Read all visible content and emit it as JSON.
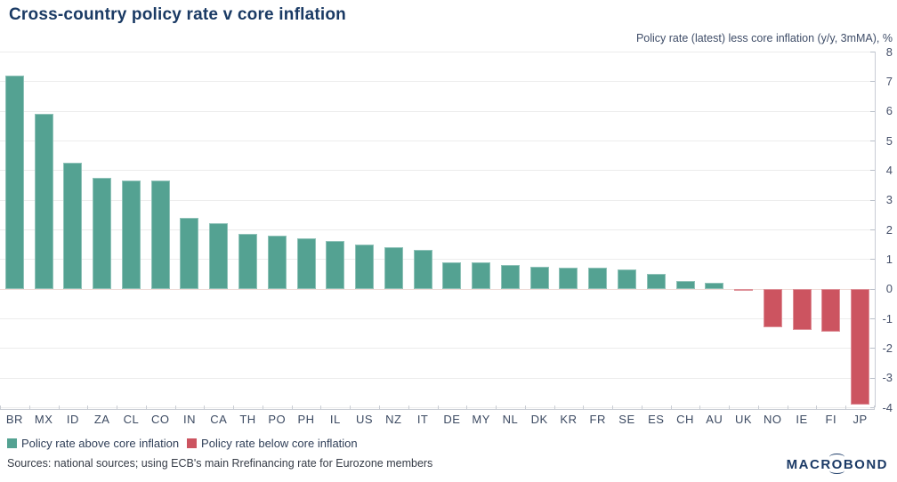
{
  "header": {
    "title": "Cross-country policy rate v core inflation",
    "subtitle": "Policy rate (latest) less core inflation (y/y, 3mMA), %"
  },
  "chart_data": {
    "type": "bar",
    "title": "Cross-country policy rate v core inflation",
    "value_axis_note": "Policy rate (latest) less core inflation (y/y, 3mMA), %",
    "categories": [
      "BR",
      "MX",
      "ID",
      "ZA",
      "CL",
      "CO",
      "IN",
      "CA",
      "TH",
      "PO",
      "PH",
      "IL",
      "US",
      "NZ",
      "IT",
      "DE",
      "MY",
      "NL",
      "DK",
      "KR",
      "FR",
      "SE",
      "ES",
      "CH",
      "AU",
      "UK",
      "NO",
      "IE",
      "FI",
      "JP"
    ],
    "values": [
      7.2,
      5.9,
      4.25,
      3.75,
      3.65,
      3.65,
      2.4,
      2.2,
      1.85,
      1.8,
      1.7,
      1.6,
      1.5,
      1.4,
      1.3,
      0.9,
      0.9,
      0.8,
      0.75,
      0.7,
      0.7,
      0.65,
      0.5,
      0.25,
      0.2,
      -0.07,
      -1.3,
      -1.4,
      -1.45,
      -3.9
    ],
    "xlabel": "",
    "ylabel": "%",
    "ylim": [
      -4,
      8
    ],
    "yticks": [
      8,
      7,
      6,
      5,
      4,
      3,
      2,
      1,
      0,
      -1,
      -2,
      -3,
      -4
    ],
    "grid": true,
    "axis_side": "right",
    "legend_position": "bottom-left",
    "colors": {
      "positive": "#54A292",
      "negative": "#CC5460",
      "gridline": "#ECECEC",
      "zero_line": "#EEDBD7",
      "title": "#1A3A64"
    }
  },
  "legend": [
    {
      "label": "Policy rate above core inflation",
      "color": "#54A292"
    },
    {
      "label": "Policy rate below core inflation",
      "color": "#CC5460"
    }
  ],
  "footer": {
    "source": "Sources: national sources; using ECB's main Rrefinancing rate for Eurozone members",
    "logo": {
      "left": "MACR",
      "o": "O",
      "right": "BOND"
    }
  }
}
